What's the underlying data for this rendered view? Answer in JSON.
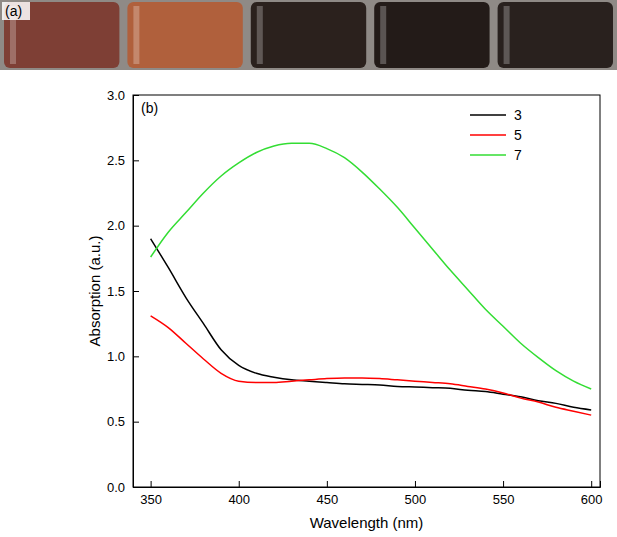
{
  "chart_data": {
    "type": "line",
    "annotations": [
      "(a)",
      "(b)"
    ],
    "x_label": "Wavelength (nm)",
    "y_label": "Absorption (a.u.)",
    "x": [
      350,
      360,
      370,
      380,
      390,
      400,
      410,
      420,
      430,
      440,
      450,
      460,
      470,
      480,
      490,
      500,
      510,
      520,
      530,
      540,
      550,
      560,
      570,
      580,
      590,
      600
    ],
    "series": [
      {
        "name": "3",
        "color": "#000000",
        "values": [
          1.9,
          1.68,
          1.45,
          1.25,
          1.05,
          0.93,
          0.87,
          0.84,
          0.82,
          0.81,
          0.8,
          0.79,
          0.785,
          0.78,
          0.77,
          0.765,
          0.76,
          0.755,
          0.74,
          0.73,
          0.71,
          0.69,
          0.66,
          0.64,
          0.61,
          0.59
        ]
      },
      {
        "name": "5",
        "color": "#ff0000",
        "values": [
          1.31,
          1.22,
          1.1,
          0.98,
          0.87,
          0.81,
          0.8,
          0.8,
          0.81,
          0.82,
          0.83,
          0.835,
          0.835,
          0.83,
          0.82,
          0.81,
          0.8,
          0.79,
          0.77,
          0.75,
          0.72,
          0.68,
          0.65,
          0.61,
          0.58,
          0.55
        ]
      },
      {
        "name": "7",
        "color": "#33dd33",
        "values": [
          1.76,
          1.95,
          2.1,
          2.25,
          2.38,
          2.48,
          2.56,
          2.61,
          2.63,
          2.63,
          2.59,
          2.52,
          2.41,
          2.28,
          2.14,
          1.98,
          1.82,
          1.66,
          1.51,
          1.36,
          1.23,
          1.1,
          0.99,
          0.89,
          0.81,
          0.75
        ]
      }
    ],
    "xlim": [
      340,
      605
    ],
    "xticks": [
      350,
      400,
      450,
      500,
      550,
      600
    ],
    "ylim": [
      0,
      3
    ],
    "yticks": [
      {
        "value": 0,
        "label": "0.0"
      },
      {
        "value": 0.5,
        "label": "0.5"
      },
      {
        "value": 1,
        "label": "1.0"
      },
      {
        "value": 1.5,
        "label": "1.5"
      },
      {
        "value": 2,
        "label": "2.0"
      },
      {
        "value": 2.5,
        "label": "2.5"
      },
      {
        "value": 3,
        "label": "3.0"
      }
    ],
    "legend": "upper right",
    "grid": false
  }
}
